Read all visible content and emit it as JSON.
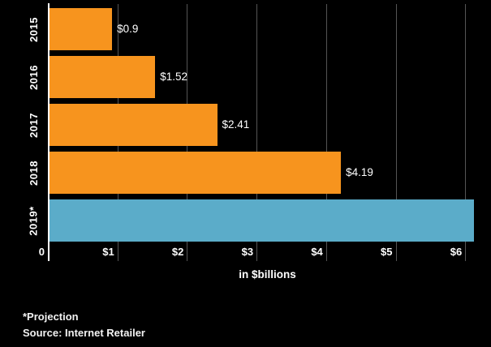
{
  "chart_data": {
    "type": "bar",
    "orientation": "horizontal",
    "title": "",
    "categories": [
      "2015",
      "2016",
      "2017",
      "2018",
      "2019*"
    ],
    "values": [
      0.9,
      1.52,
      2.41,
      4.19,
      6.1
    ],
    "data_labels": [
      "$0.9",
      "$1.52",
      "$2.41",
      "$4.19",
      ""
    ],
    "bar_colors": [
      "#F7941E",
      "#F7941E",
      "#F7941E",
      "#F7941E",
      "#5BACC9"
    ],
    "xlabel": "in $billions",
    "ylabel": "",
    "xlim": [
      0,
      6.27
    ],
    "x_ticks": [
      {
        "value": 0,
        "label": "0"
      },
      {
        "value": 1,
        "label": "$1"
      },
      {
        "value": 2,
        "label": "$2"
      },
      {
        "value": 3,
        "label": "$3"
      },
      {
        "value": 4,
        "label": "$4"
      },
      {
        "value": 5,
        "label": "$5"
      },
      {
        "value": 6,
        "label": "$6"
      }
    ],
    "grid": true,
    "legend": "none",
    "colors": {
      "background": "#000000",
      "bar_default": "#F7941E",
      "bar_projection": "#5BACC9",
      "gridline": "#555555",
      "axis_line": "#FFFFFF",
      "text": "#FFFFFF"
    }
  },
  "footer": {
    "projection_note": "*Projection",
    "source": "Source: Internet Retailer"
  }
}
